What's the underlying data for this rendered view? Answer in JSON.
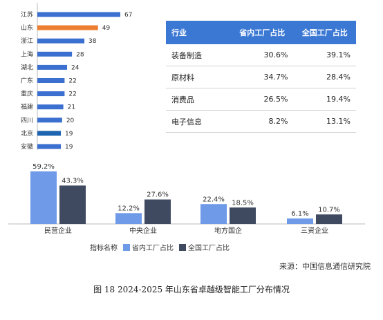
{
  "chart_data": [
    {
      "type": "bar",
      "orientation": "horizontal",
      "categories": [
        "江苏",
        "山东",
        "浙江",
        "上海",
        "湖北",
        "广东",
        "重庆",
        "福建",
        "四川",
        "北京",
        "安徽"
      ],
      "values": [
        67,
        49,
        38,
        28,
        24,
        22,
        22,
        21,
        20,
        19,
        19
      ],
      "colors": [
        "#3b6fd0",
        "#ed7d31",
        "#3b6fd0",
        "#3b6fd0",
        "#3b6fd0",
        "#3b6fd0",
        "#3b6fd0",
        "#3b6fd0",
        "#3b6fd0",
        "#1f64b0",
        "#3b6fd0"
      ]
    },
    {
      "type": "table",
      "columns": [
        "行业",
        "省内工厂占比",
        "全国工厂占比"
      ],
      "rows": [
        [
          "装备制造",
          "30.6%",
          "39.1%"
        ],
        [
          "原材料",
          "34.7%",
          "28.4%"
        ],
        [
          "消费品",
          "26.5%",
          "19.4%"
        ],
        [
          "电子信息",
          "8.2%",
          "13.1%"
        ]
      ]
    },
    {
      "type": "bar",
      "categories": [
        "民营企业",
        "中央企业",
        "地方国企",
        "三资企业"
      ],
      "series": [
        {
          "name": "省内工厂占比",
          "values": [
            59.2,
            12.2,
            22.4,
            6.1
          ],
          "labels": [
            "59.2%",
            "12.2%",
            "22.4%",
            "6.1%"
          ],
          "color": "#6e9ae8"
        },
        {
          "name": "全国工厂占比",
          "values": [
            43.3,
            27.6,
            18.5,
            10.7
          ],
          "labels": [
            "43.3%",
            "27.6%",
            "18.5%",
            "10.7%"
          ],
          "color": "#3f4a60"
        }
      ],
      "legend_title": "指标名称",
      "ylim": [
        0,
        60
      ]
    }
  ],
  "source": "来源：中国信息通信研究院",
  "caption": "图 18 2024-2025 年山东省卓越级智能工厂分布情况"
}
